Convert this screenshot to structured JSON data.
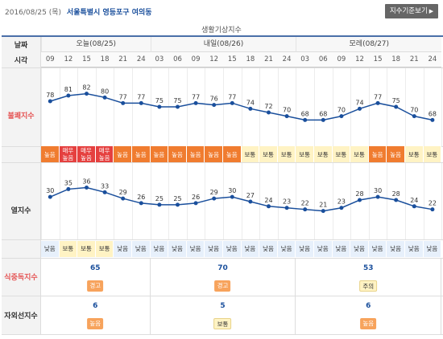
{
  "header": {
    "date": "2016/08/25 (목)",
    "location": "서울특별시 영등포구 여의동",
    "standard_button": "지수기준보기",
    "standard_arrow": "▶"
  },
  "caption": "생활기상지수",
  "row_headers": {
    "date": "날짜",
    "time": "시각",
    "discomfort": "불쾌지수",
    "heat": "열지수",
    "food": "식중독지수",
    "uv": "자외선지수"
  },
  "days": [
    "오늘(08/25)",
    "내일(08/26)",
    "모레(08/27)"
  ],
  "times": [
    "09",
    "12",
    "15",
    "18",
    "21",
    "24",
    "03",
    "06",
    "09",
    "12",
    "15",
    "18",
    "21",
    "24",
    "03",
    "06",
    "09",
    "12",
    "15",
    "18",
    "21",
    "24"
  ],
  "discomfort": {
    "values": [
      78,
      81,
      82,
      80,
      77,
      77,
      75,
      75,
      77,
      76,
      77,
      74,
      72,
      70,
      68,
      68,
      70,
      74,
      77,
      75,
      70,
      68
    ],
    "levels": [
      "높음",
      "매우높음",
      "매우높음",
      "매우높음",
      "높음",
      "높음",
      "높음",
      "높음",
      "높음",
      "높음",
      "높음",
      "보통",
      "보통",
      "보통",
      "보통",
      "보통",
      "보통",
      "보통",
      "높음",
      "높음",
      "보통",
      "보통"
    ],
    "level_types": [
      "high",
      "veryhigh",
      "veryhigh",
      "veryhigh",
      "high",
      "high",
      "high",
      "high",
      "high",
      "high",
      "high",
      "normal",
      "normal",
      "normal",
      "normal",
      "normal",
      "normal",
      "normal",
      "high",
      "high",
      "normal",
      "normal"
    ]
  },
  "heat": {
    "values": [
      30,
      35,
      36,
      33,
      29,
      26,
      25,
      25,
      26,
      29,
      30,
      27,
      24,
      23,
      22,
      21,
      23,
      28,
      30,
      28,
      24,
      22
    ],
    "levels": [
      "낮음",
      "보통",
      "보통",
      "보통",
      "낮음",
      "낮음",
      "낮음",
      "낮음",
      "낮음",
      "낮음",
      "낮음",
      "낮음",
      "낮음",
      "낮음",
      "낮음",
      "낮음",
      "낮음",
      "낮음",
      "낮음",
      "낮음",
      "낮음",
      "낮음"
    ],
    "level_types": [
      "low",
      "normal",
      "normal",
      "normal",
      "low",
      "low",
      "low",
      "low",
      "low",
      "low",
      "low",
      "low",
      "low",
      "low",
      "low",
      "low",
      "low",
      "low",
      "low",
      "low",
      "low",
      "low"
    ]
  },
  "food": {
    "values": [
      "65",
      "70",
      "53"
    ],
    "badges": [
      "경고",
      "경고",
      "주의"
    ],
    "badge_types": [
      "warn",
      "warn",
      "caution"
    ]
  },
  "uv": {
    "values": [
      "6",
      "5",
      "6"
    ],
    "badges": [
      "높음",
      "보통",
      "높음"
    ],
    "badge_types": [
      "hi",
      "norm",
      "hi"
    ]
  },
  "colors": {
    "line": "#1a4f9c",
    "header_accent": "#4a6fa8"
  }
}
